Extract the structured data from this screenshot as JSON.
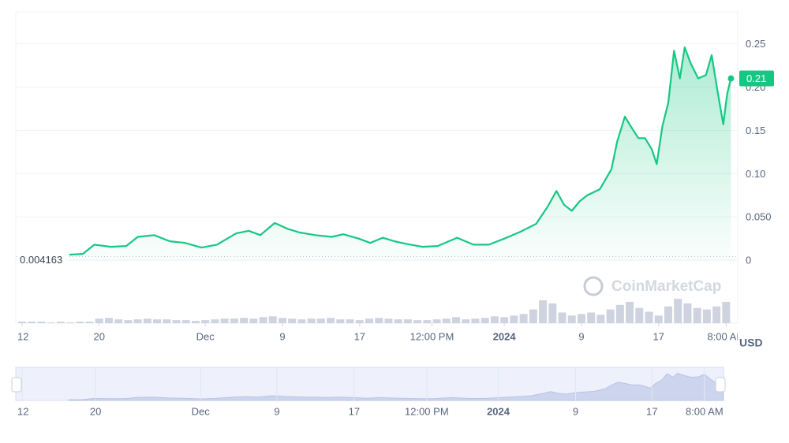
{
  "chart_data": {
    "type": "line",
    "color": "#16c784",
    "x": [
      4.9,
      6.3,
      7.5,
      9.2,
      10.8,
      12.0,
      13.7,
      15.3,
      16.9,
      18.6,
      20.2,
      22.2,
      23.5,
      24.7,
      26.2,
      27.6,
      28.8,
      30.4,
      32.1,
      33.3,
      34.9,
      36.1,
      37.4,
      38.6,
      39.8,
      41.5,
      43.1,
      45.1,
      46.8,
      48.4,
      50.0,
      51.7,
      53.3,
      54.5,
      55.4,
      56.2,
      57.0,
      57.8,
      58.6,
      59.9,
      61.1,
      61.7,
      62.5,
      63.1,
      63.9,
      64.6,
      65.3,
      65.8,
      66.4,
      67.0,
      67.6,
      68.2,
      68.7,
      69.3,
      70.1,
      70.9,
      71.5,
      72.1,
      72.7,
      73.1,
      73.5
    ],
    "values": [
      0.0064,
      0.0073,
      0.018,
      0.0155,
      0.0164,
      0.027,
      0.029,
      0.022,
      0.02,
      0.0146,
      0.018,
      0.031,
      0.034,
      0.029,
      0.043,
      0.036,
      0.032,
      0.029,
      0.027,
      0.03,
      0.025,
      0.02,
      0.026,
      0.022,
      0.019,
      0.0155,
      0.0164,
      0.026,
      0.018,
      0.018,
      0.025,
      0.033,
      0.042,
      0.062,
      0.08,
      0.064,
      0.057,
      0.068,
      0.075,
      0.082,
      0.105,
      0.137,
      0.166,
      0.155,
      0.141,
      0.141,
      0.128,
      0.111,
      0.155,
      0.182,
      0.242,
      0.21,
      0.246,
      0.228,
      0.21,
      0.214,
      0.237,
      0.196,
      0.157,
      0.192,
      0.21
    ],
    "xlim": [
      -0.65,
      74.2
    ],
    "ylim": [
      -0.009,
      0.287
    ],
    "xticks": [
      {
        "value": 0,
        "label": "12"
      },
      {
        "value": 8,
        "label": "20"
      },
      {
        "value": 19,
        "label": "Dec"
      },
      {
        "value": 27,
        "label": "9"
      },
      {
        "value": 35,
        "label": "17"
      },
      {
        "value": 42.5,
        "label": "12:00 PM"
      },
      {
        "value": 50,
        "label": "2024"
      },
      {
        "value": 58,
        "label": "9"
      },
      {
        "value": 66,
        "label": "17"
      },
      {
        "value": 73,
        "label": "8:00 AM"
      }
    ],
    "yticks": [
      0,
      {
        "value": 0.05,
        "label": "0.050"
      },
      {
        "value": 0.1,
        "label": "0.10"
      },
      0.15,
      {
        "value": 0.2,
        "label": "0.20"
      },
      0.25
    ],
    "grid": true,
    "baseline": 0.004163,
    "current_price": 0.21,
    "currency": "USD",
    "watermark": "CoinMarketCap",
    "volume": {
      "color": "#c3c8d8",
      "ylim": [
        0,
        60
      ],
      "x": [
        0,
        1,
        2,
        3,
        4,
        5,
        6,
        7,
        8,
        9,
        10,
        11,
        12,
        13,
        14,
        15,
        16,
        17,
        18,
        19,
        20,
        21,
        22,
        23,
        24,
        25,
        26,
        27,
        28,
        29,
        30,
        31,
        32,
        33,
        34,
        35,
        36,
        37,
        38,
        39,
        40,
        41,
        42,
        43,
        44,
        45,
        46,
        47,
        48,
        49,
        50,
        51,
        52,
        53,
        54,
        55,
        56,
        57,
        58,
        59,
        60,
        61,
        62,
        63,
        64,
        65,
        66,
        67,
        68,
        69,
        70,
        71,
        72,
        73
      ],
      "values": [
        2,
        2,
        2,
        1,
        2,
        1,
        2,
        2,
        6,
        7,
        5,
        4,
        5,
        6,
        5,
        5,
        4,
        4,
        3,
        4,
        5,
        6,
        6,
        7,
        6,
        8,
        9,
        7,
        6,
        5,
        6,
        6,
        7,
        5,
        5,
        4,
        6,
        7,
        6,
        5,
        5,
        4,
        4,
        5,
        6,
        8,
        5,
        6,
        7,
        9,
        8,
        10,
        12,
        18,
        30,
        26,
        14,
        10,
        12,
        14,
        11,
        18,
        24,
        28,
        20,
        15,
        10,
        22,
        32,
        26,
        20,
        18,
        22,
        28
      ]
    },
    "navigator": {
      "xlim": [
        -0.66,
        73.5
      ],
      "ylim": [
        0,
        0.3
      ],
      "xticks": [
        {
          "value": 0,
          "label": "12"
        },
        {
          "value": 7.7,
          "label": "20"
        },
        {
          "value": 18.7,
          "label": "Dec"
        },
        {
          "value": 26.7,
          "label": "9"
        },
        {
          "value": 34.8,
          "label": "17"
        },
        {
          "value": 42.4,
          "label": "12:00 PM"
        },
        {
          "value": 49.9,
          "label": "2024"
        },
        {
          "value": 58,
          "label": "9"
        },
        {
          "value": 66,
          "label": "17"
        },
        {
          "value": 71.5,
          "label": "8:00 AM"
        }
      ]
    }
  }
}
